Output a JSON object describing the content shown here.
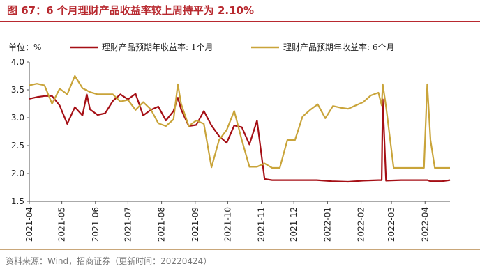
{
  "figure": {
    "title": "图 67：6 个月理财产品收益率较上周持平为 2.10%",
    "source": "资料来源：Wind，招商证券（更新时间：20220424）"
  },
  "chart_data": {
    "type": "line",
    "ylabel": "单位：%",
    "ylim": [
      1.5,
      4.0
    ],
    "yticks": [
      "1.5",
      "2.0",
      "2.5",
      "3.0",
      "3.5",
      "4.0"
    ],
    "xlim": [
      "2021-04-01",
      "2022-04-24"
    ],
    "xticks": [
      "2021-04",
      "2021-05",
      "2021-06",
      "2021-07",
      "2021-08",
      "2021-09",
      "2021-10",
      "2021-11",
      "2021-12",
      "2022-01",
      "2022-02",
      "2022-03",
      "2022-04"
    ],
    "grid": false,
    "legend": "top",
    "series": [
      {
        "name": "理财产品预期年收益率: 1个月",
        "color": "#a50f15",
        "points": [
          [
            "2021-04-01",
            3.34
          ],
          [
            "2021-04-08",
            3.37
          ],
          [
            "2021-04-15",
            3.39
          ],
          [
            "2021-04-22",
            3.39
          ],
          [
            "2021-04-29",
            3.22
          ],
          [
            "2021-05-06",
            2.89
          ],
          [
            "2021-05-13",
            3.19
          ],
          [
            "2021-05-20",
            3.04
          ],
          [
            "2021-05-24",
            3.42
          ],
          [
            "2021-05-27",
            3.15
          ],
          [
            "2021-06-03",
            3.05
          ],
          [
            "2021-06-10",
            3.08
          ],
          [
            "2021-06-17",
            3.3
          ],
          [
            "2021-06-24",
            3.42
          ],
          [
            "2021-07-01",
            3.33
          ],
          [
            "2021-07-08",
            3.43
          ],
          [
            "2021-07-15",
            3.04
          ],
          [
            "2021-07-22",
            3.14
          ],
          [
            "2021-07-29",
            3.2
          ],
          [
            "2021-08-05",
            2.95
          ],
          [
            "2021-08-12",
            3.12
          ],
          [
            "2021-08-16",
            3.36
          ],
          [
            "2021-08-19",
            3.15
          ],
          [
            "2021-08-26",
            2.85
          ],
          [
            "2021-09-02",
            2.87
          ],
          [
            "2021-09-09",
            3.12
          ],
          [
            "2021-09-16",
            2.86
          ],
          [
            "2021-09-23",
            2.67
          ],
          [
            "2021-09-30",
            2.55
          ],
          [
            "2021-10-07",
            2.86
          ],
          [
            "2021-10-14",
            2.83
          ],
          [
            "2021-10-21",
            2.52
          ],
          [
            "2021-10-28",
            2.95
          ],
          [
            "2021-11-04",
            1.9
          ],
          [
            "2021-11-11",
            1.88
          ],
          [
            "2021-12-01",
            1.88
          ],
          [
            "2021-12-22",
            1.88
          ],
          [
            "2022-01-05",
            1.86
          ],
          [
            "2022-01-20",
            1.85
          ],
          [
            "2022-02-03",
            1.87
          ],
          [
            "2022-02-17",
            1.88
          ],
          [
            "2022-02-20",
            1.88
          ],
          [
            "2022-02-21",
            3.33
          ],
          [
            "2022-02-24",
            1.87
          ],
          [
            "2022-03-10",
            1.88
          ],
          [
            "2022-03-24",
            1.88
          ],
          [
            "2022-04-03",
            1.88
          ],
          [
            "2022-04-06",
            1.86
          ],
          [
            "2022-04-17",
            1.86
          ],
          [
            "2022-04-24",
            1.88
          ]
        ]
      },
      {
        "name": "理财产品预期年收益率: 6个月",
        "color": "#c9a43a",
        "points": [
          [
            "2021-04-01",
            3.58
          ],
          [
            "2021-04-08",
            3.61
          ],
          [
            "2021-04-15",
            3.58
          ],
          [
            "2021-04-22",
            3.25
          ],
          [
            "2021-04-29",
            3.52
          ],
          [
            "2021-05-06",
            3.42
          ],
          [
            "2021-05-13",
            3.75
          ],
          [
            "2021-05-20",
            3.53
          ],
          [
            "2021-05-27",
            3.46
          ],
          [
            "2021-06-03",
            3.42
          ],
          [
            "2021-06-10",
            3.42
          ],
          [
            "2021-06-17",
            3.42
          ],
          [
            "2021-06-24",
            3.29
          ],
          [
            "2021-07-01",
            3.32
          ],
          [
            "2021-07-08",
            3.14
          ],
          [
            "2021-07-15",
            3.28
          ],
          [
            "2021-07-22",
            3.15
          ],
          [
            "2021-07-29",
            2.9
          ],
          [
            "2021-08-05",
            2.85
          ],
          [
            "2021-08-12",
            2.97
          ],
          [
            "2021-08-16",
            3.6
          ],
          [
            "2021-08-19",
            3.25
          ],
          [
            "2021-08-26",
            2.85
          ],
          [
            "2021-09-02",
            2.95
          ],
          [
            "2021-09-09",
            2.89
          ],
          [
            "2021-09-16",
            2.11
          ],
          [
            "2021-09-23",
            2.6
          ],
          [
            "2021-09-30",
            2.78
          ],
          [
            "2021-10-07",
            3.12
          ],
          [
            "2021-10-14",
            2.6
          ],
          [
            "2021-10-21",
            2.12
          ],
          [
            "2021-10-28",
            2.12
          ],
          [
            "2021-11-04",
            2.18
          ],
          [
            "2021-11-11",
            2.1
          ],
          [
            "2021-11-18",
            2.1
          ],
          [
            "2021-11-25",
            2.6
          ],
          [
            "2021-12-02",
            2.6
          ],
          [
            "2021-12-09",
            3.02
          ],
          [
            "2021-12-16",
            3.14
          ],
          [
            "2021-12-23",
            3.24
          ],
          [
            "2021-12-30",
            2.99
          ],
          [
            "2022-01-06",
            3.21
          ],
          [
            "2022-01-13",
            3.18
          ],
          [
            "2022-01-20",
            3.16
          ],
          [
            "2022-01-27",
            3.22
          ],
          [
            "2022-02-03",
            3.28
          ],
          [
            "2022-02-10",
            3.4
          ],
          [
            "2022-02-17",
            3.45
          ],
          [
            "2022-02-20",
            3.22
          ],
          [
            "2022-02-21",
            3.6
          ],
          [
            "2022-02-24",
            3.2
          ],
          [
            "2022-03-03",
            2.1
          ],
          [
            "2022-03-10",
            2.1
          ],
          [
            "2022-03-17",
            2.1
          ],
          [
            "2022-03-24",
            2.1
          ],
          [
            "2022-03-31",
            2.1
          ],
          [
            "2022-04-03",
            3.6
          ],
          [
            "2022-04-06",
            2.6
          ],
          [
            "2022-04-10",
            2.1
          ],
          [
            "2022-04-17",
            2.1
          ],
          [
            "2022-04-24",
            2.1
          ]
        ]
      }
    ]
  }
}
